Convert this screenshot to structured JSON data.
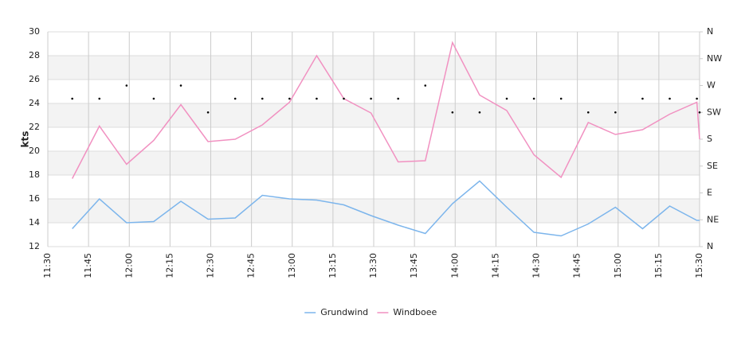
{
  "chart_data": {
    "type": "line",
    "y_label": "kts",
    "xlim": [
      "11:30",
      "15:30"
    ],
    "xticks": [
      "11:30",
      "11:45",
      "12:00",
      "12:15",
      "12:30",
      "12:45",
      "13:00",
      "13:15",
      "13:30",
      "13:45",
      "14:00",
      "14:15",
      "14:30",
      "14:45",
      "15:00",
      "15:15",
      "15:30"
    ],
    "ylim": [
      12,
      30
    ],
    "yticks": [
      12,
      14,
      16,
      18,
      20,
      22,
      24,
      26,
      28,
      30
    ],
    "y2lim": [
      0,
      360
    ],
    "y2ticks": [
      {
        "value": 0,
        "label": "N"
      },
      {
        "value": 45,
        "label": "NE"
      },
      {
        "value": 90,
        "label": "E"
      },
      {
        "value": 135,
        "label": "SE"
      },
      {
        "value": 180,
        "label": "S"
      },
      {
        "value": 225,
        "label": "SW"
      },
      {
        "value": 270,
        "label": "W"
      },
      {
        "value": 315,
        "label": "NW"
      },
      {
        "value": 360,
        "label": "N"
      }
    ],
    "grid": true,
    "bands": true,
    "legend": "bottom",
    "x": [
      "11:39",
      "11:49",
      "11:59",
      "12:09",
      "12:19",
      "12:29",
      "12:39",
      "12:49",
      "12:59",
      "13:09",
      "13:19",
      "13:29",
      "13:39",
      "13:49",
      "13:59",
      "14:09",
      "14:19",
      "14:29",
      "14:39",
      "14:49",
      "14:59",
      "15:09",
      "15:19",
      "15:29",
      "15:30"
    ],
    "series": [
      {
        "name": "Grundwind",
        "color": "#7cb5ec",
        "values": [
          13.5,
          16.0,
          14.0,
          14.1,
          15.8,
          14.3,
          14.4,
          16.3,
          16.0,
          15.9,
          15.5,
          14.6,
          13.8,
          13.1,
          15.6,
          17.5,
          15.3,
          13.2,
          12.9,
          13.9,
          15.3,
          13.5,
          15.4,
          14.2,
          14.2
        ]
      },
      {
        "name": "Windboee",
        "color": "#f191c1",
        "values": [
          17.7,
          22.1,
          18.9,
          20.9,
          23.9,
          20.8,
          21.0,
          22.2,
          24.1,
          28.0,
          24.4,
          23.2,
          19.1,
          19.2,
          29.1,
          24.7,
          23.4,
          19.7,
          17.8,
          22.4,
          21.4,
          21.8,
          23.1,
          24.1,
          21.0
        ]
      }
    ],
    "direction": {
      "axis": "y2",
      "color": "#000000",
      "values": [
        248,
        248,
        270,
        248,
        270,
        225,
        248,
        248,
        248,
        248,
        248,
        248,
        248,
        270,
        225,
        225,
        248,
        248,
        248,
        225,
        225,
        248,
        248,
        248,
        225
      ]
    }
  }
}
